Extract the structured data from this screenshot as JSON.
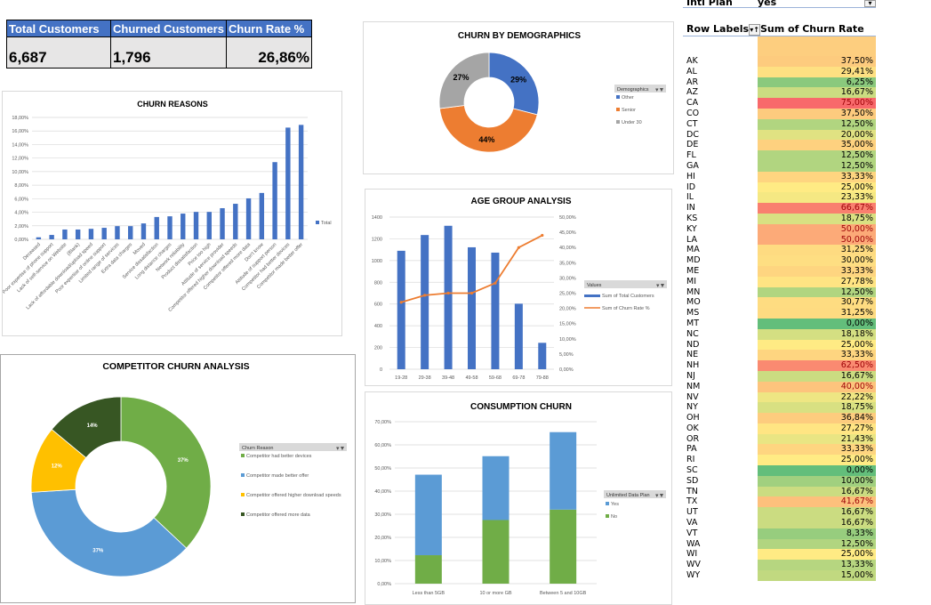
{
  "kpis": {
    "headers": [
      "Total Customers",
      "Churned Customers",
      "Churn Rate %"
    ],
    "values": [
      "6,687",
      "1,796",
      "26,86%"
    ],
    "header_color": "#4472C4"
  },
  "pivot": {
    "filter_label": "Intl Plan",
    "filter_value": "yes",
    "row_labels_header": "Row Labels",
    "value_header": "Sum of Churn Rate %",
    "scale_colors": {
      "low": "#63BE7B",
      "mid": "#FFEB84",
      "high": "#F8696B"
    },
    "rows": [
      [
        "AK",
        "37,50%",
        37.5
      ],
      [
        "AL",
        "29,41%",
        29.41
      ],
      [
        "AR",
        "6,25%",
        6.25
      ],
      [
        "AZ",
        "16,67%",
        16.67
      ],
      [
        "CA",
        "75,00%",
        75
      ],
      [
        "CO",
        "37,50%",
        37.5
      ],
      [
        "CT",
        "12,50%",
        12.5
      ],
      [
        "DC",
        "20,00%",
        20
      ],
      [
        "DE",
        "35,00%",
        35
      ],
      [
        "FL",
        "12,50%",
        12.5
      ],
      [
        "GA",
        "12,50%",
        12.5
      ],
      [
        "HI",
        "33,33%",
        33.33
      ],
      [
        "ID",
        "25,00%",
        25
      ],
      [
        "IL",
        "23,33%",
        23.33
      ],
      [
        "IN",
        "66,67%",
        66.67
      ],
      [
        "KS",
        "18,75%",
        18.75
      ],
      [
        "KY",
        "50,00%",
        50
      ],
      [
        "LA",
        "50,00%",
        50
      ],
      [
        "MA",
        "31,25%",
        31.25
      ],
      [
        "MD",
        "30,00%",
        30
      ],
      [
        "ME",
        "33,33%",
        33.33
      ],
      [
        "MI",
        "27,78%",
        27.78
      ],
      [
        "MN",
        "12,50%",
        12.5
      ],
      [
        "MO",
        "30,77%",
        30.77
      ],
      [
        "MS",
        "31,25%",
        31.25
      ],
      [
        "MT",
        "0,00%",
        0
      ],
      [
        "NC",
        "18,18%",
        18.18
      ],
      [
        "ND",
        "25,00%",
        25
      ],
      [
        "NE",
        "33,33%",
        33.33
      ],
      [
        "NH",
        "62,50%",
        62.5
      ],
      [
        "NJ",
        "16,67%",
        16.67
      ],
      [
        "NM",
        "40,00%",
        40
      ],
      [
        "NV",
        "22,22%",
        22.22
      ],
      [
        "NY",
        "18,75%",
        18.75
      ],
      [
        "OH",
        "36,84%",
        36.84
      ],
      [
        "OK",
        "27,27%",
        27.27
      ],
      [
        "OR",
        "21,43%",
        21.43
      ],
      [
        "PA",
        "33,33%",
        33.33
      ],
      [
        "RI",
        "25,00%",
        25
      ],
      [
        "SC",
        "0,00%",
        0
      ],
      [
        "SD",
        "10,00%",
        10
      ],
      [
        "TN",
        "16,67%",
        16.67
      ],
      [
        "TX",
        "41,67%",
        41.67
      ],
      [
        "UT",
        "16,67%",
        16.67
      ],
      [
        "VA",
        "16,67%",
        16.67
      ],
      [
        "VT",
        "8,33%",
        8.33
      ],
      [
        "WA",
        "12,50%",
        12.5
      ],
      [
        "WI",
        "25,00%",
        25
      ],
      [
        "WV",
        "13,33%",
        13.33
      ],
      [
        "WY",
        "15,00%",
        15
      ]
    ]
  },
  "chart_data": [
    {
      "type": "bar",
      "title": "CHURN REASONS",
      "legend": [
        "Total"
      ],
      "legend_position": "right",
      "color": "#4472C4",
      "grid": true,
      "ylim": [
        0,
        18
      ],
      "ytick_labels": [
        "0,00%",
        "2,00%",
        "4,00%",
        "6,00%",
        "8,00%",
        "10,00%",
        "12,00%",
        "14,00%",
        "16,00%",
        "18,00%"
      ],
      "categories": [
        "Deceased",
        "Poor expertise of phone support",
        "Lack of self-service on Website",
        "(Blank)",
        "Lack of affordable download/upload speed",
        "Poor expertise of online support",
        "Limited range of services",
        "Extra data charges",
        "Moved",
        "Service dissatisfaction",
        "Long distance charges",
        "Network reliability",
        "Product dissatisfaction",
        "Price too high",
        "Attitude of service provider",
        "Competitor offered higher download speeds",
        "Competitor offered more data",
        "Don't know",
        "Attitude of support person",
        "Competitor had better devices",
        "Competitor made better offer"
      ],
      "values": [
        0.3,
        0.65,
        1.45,
        1.45,
        1.55,
        1.7,
        1.95,
        1.95,
        2.35,
        3.3,
        3.4,
        3.8,
        4.05,
        4.05,
        4.6,
        5.25,
        6.05,
        6.85,
        11.4,
        16.5,
        16.9
      ]
    },
    {
      "type": "pie",
      "title": "CHURN BY DEMOGRAPHICS",
      "legend_title": "Demographics",
      "legend_position": "right",
      "labels": [
        "Other",
        "Senior",
        "Under 30"
      ],
      "values": [
        29,
        44,
        27
      ],
      "data_labels": [
        "29%",
        "44%",
        "27%"
      ],
      "colors": [
        "#4472C4",
        "#ED7D31",
        "#A5A5A5"
      ]
    },
    {
      "type": "bar",
      "title": "AGE GROUP ANALYSIS",
      "legend_title": "Values",
      "legend_position": "right",
      "grid": true,
      "categories": [
        "19-28",
        "29-38",
        "39-48",
        "49-58",
        "59-68",
        "69-78",
        "79-88"
      ],
      "ylim": [
        0,
        1400
      ],
      "y2lim": [
        0,
        50
      ],
      "ytick_labels": [
        "0",
        "200",
        "400",
        "600",
        "800",
        "1000",
        "1200",
        "1400"
      ],
      "y2tick_labels": [
        "0,00%",
        "5,00%",
        "10,00%",
        "15,00%",
        "20,00%",
        "25,00%",
        "30,00%",
        "35,00%",
        "40,00%",
        "45,00%",
        "50,00%"
      ],
      "series": [
        {
          "name": "Sum of Total Customers",
          "type": "bar",
          "color": "#4472C4",
          "values": [
            1090,
            1235,
            1320,
            1122,
            1073,
            603,
            243
          ]
        },
        {
          "name": "Sum of Churn Rate %",
          "type": "line",
          "axis": "secondary",
          "color": "#ED7D31",
          "values": [
            22,
            24.3,
            25,
            25,
            28.3,
            40,
            44
          ]
        }
      ]
    },
    {
      "type": "bar",
      "stacked": true,
      "title": "CONSUMPTION CHURN",
      "legend_title": "Unlimited Data Plan",
      "legend_position": "right",
      "grid": true,
      "ylim": [
        0,
        70
      ],
      "ytick_labels": [
        "0,00%",
        "10,00%",
        "20,00%",
        "30,00%",
        "40,00%",
        "50,00%",
        "60,00%",
        "70,00%"
      ],
      "categories": [
        "Less than 5GB",
        "10 or more GB",
        "Between 5 and 10GB"
      ],
      "series": [
        {
          "name": "No",
          "color": "#70AD47",
          "values": [
            12.3,
            27.5,
            32
          ]
        },
        {
          "name": "Yes",
          "color": "#5B9BD5",
          "values": [
            34.8,
            27.6,
            33.5
          ]
        }
      ],
      "legend": [
        "Yes",
        "No"
      ]
    },
    {
      "type": "pie",
      "title": "COMPETITOR CHURN ANALYSIS",
      "legend_title": "Churn Reason",
      "legend_position": "right",
      "labels": [
        "Competitor had better devices",
        "Competitor made better offer",
        "Competitor offered higher download speeds",
        "Competitor offered more data"
      ],
      "values": [
        37,
        37,
        12,
        14
      ],
      "data_labels": [
        "37%",
        "37%",
        "12%",
        "14%"
      ],
      "colors": [
        "#70AD47",
        "#5B9BD5",
        "#FFC000",
        "#375623"
      ]
    }
  ]
}
